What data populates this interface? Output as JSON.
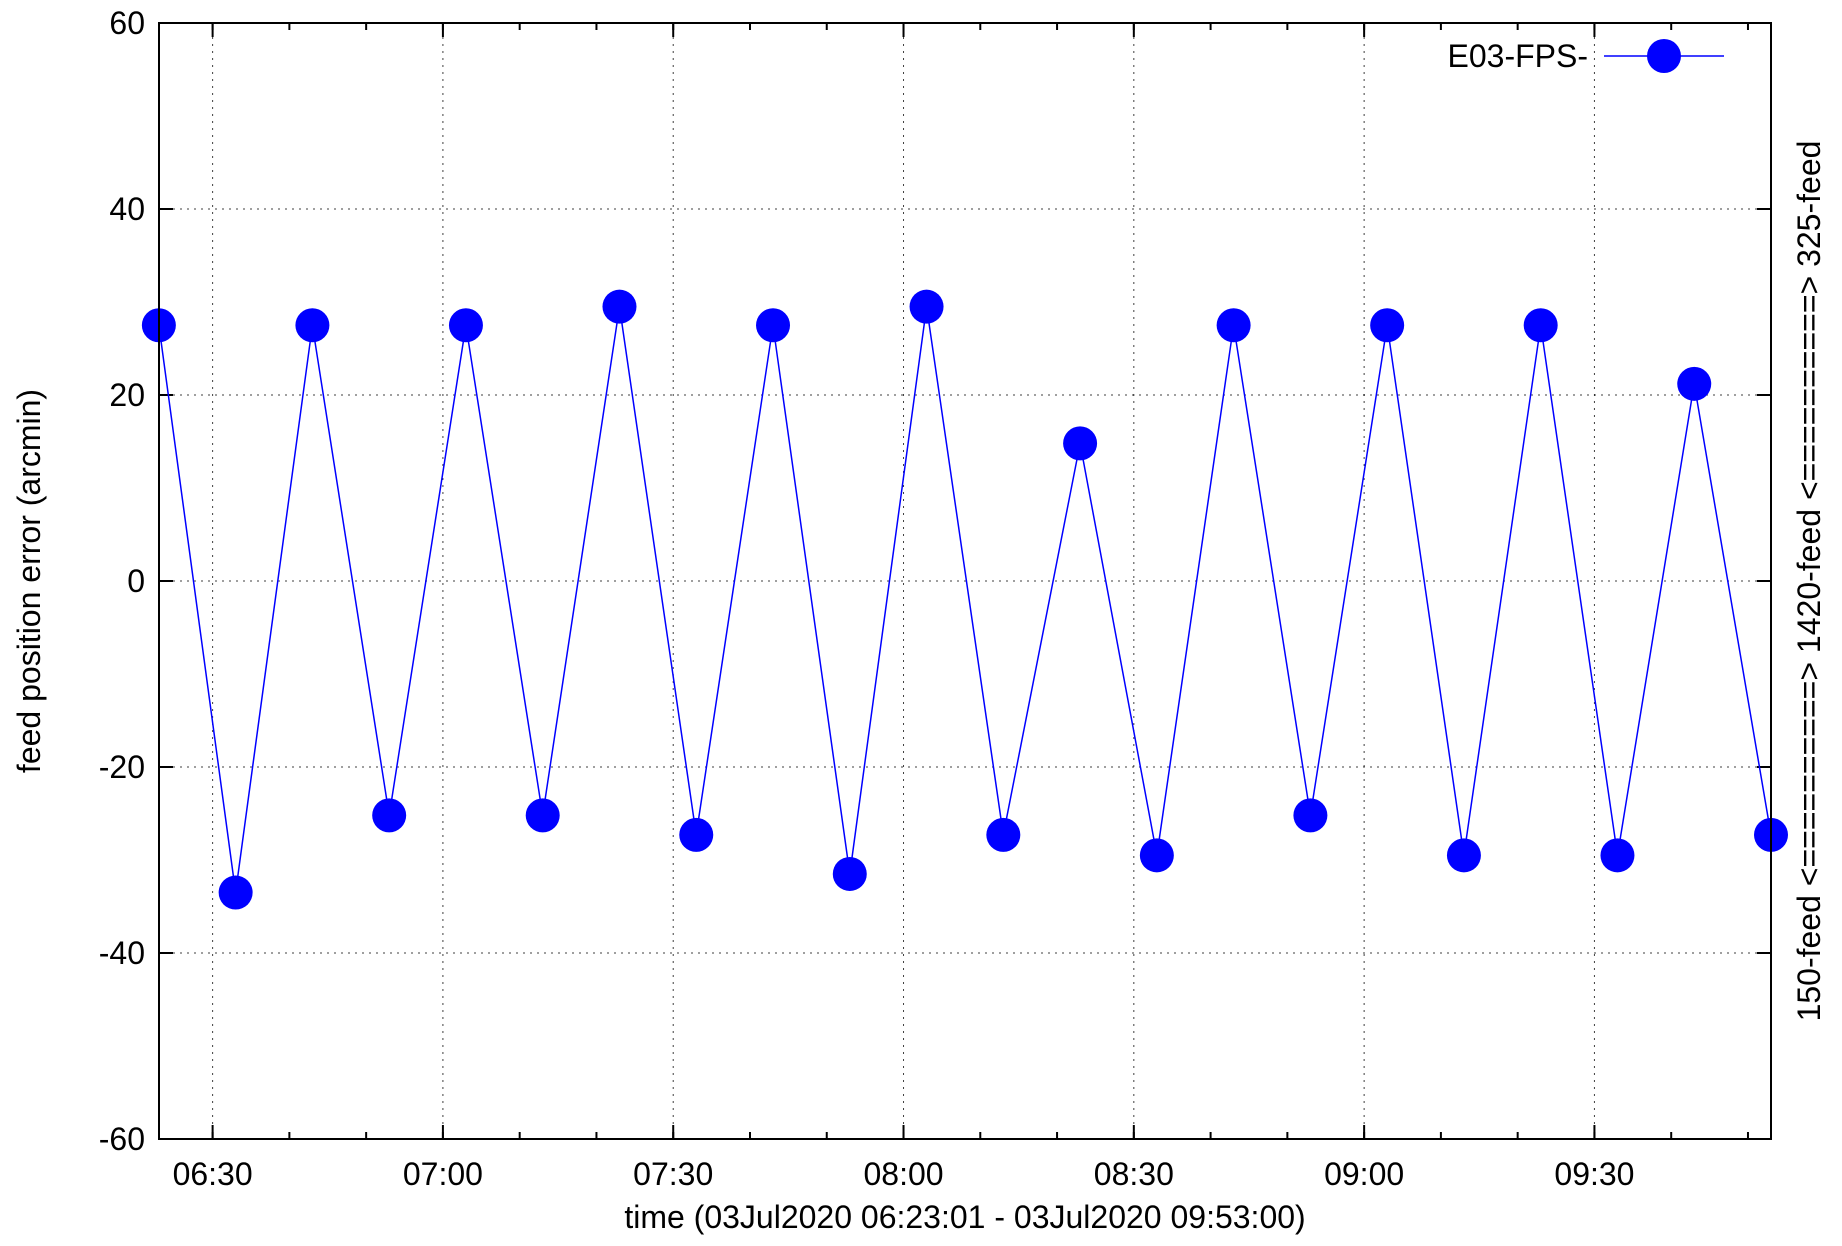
{
  "chart_data": {
    "type": "line",
    "title": "",
    "xlabel": "time (03Jul2020 06:23:01 - 03Jul2020 09:53:00)",
    "ylabel": "feed position error (arcmin)",
    "y2label": "150-feed <==========> 1420-feed <==========> 325-feed",
    "xlim": [
      "06:23:01",
      "09:53:00"
    ],
    "ylim": [
      -60,
      60
    ],
    "xticks": [
      "06:30",
      "07:00",
      "07:30",
      "08:00",
      "08:30",
      "09:00",
      "09:30"
    ],
    "xticks_minor_every_minutes": 10,
    "yticks": [
      -60,
      -40,
      -20,
      0,
      20,
      40,
      60
    ],
    "grid": true,
    "legend": {
      "position": "top-right",
      "entries": [
        "E03-FPS-"
      ]
    },
    "series": [
      {
        "name": "E03-FPS-",
        "color": "#0000ff",
        "marker": "circle",
        "x": [
          "06:23",
          "06:33",
          "06:43",
          "06:53",
          "07:03",
          "07:13",
          "07:23",
          "07:33",
          "07:43",
          "07:53",
          "08:03",
          "08:13",
          "08:23",
          "08:33",
          "08:43",
          "08:53",
          "09:03",
          "09:13",
          "09:23",
          "09:33",
          "09:43",
          "09:53"
        ],
        "y": [
          27.5,
          -33.5,
          27.5,
          -25.2,
          27.5,
          -25.2,
          29.5,
          -27.3,
          27.5,
          -31.5,
          29.5,
          -27.3,
          14.8,
          -29.5,
          27.5,
          -25.2,
          27.5,
          -29.5,
          27.5,
          -29.5,
          21.2,
          -27.3
        ]
      }
    ]
  }
}
